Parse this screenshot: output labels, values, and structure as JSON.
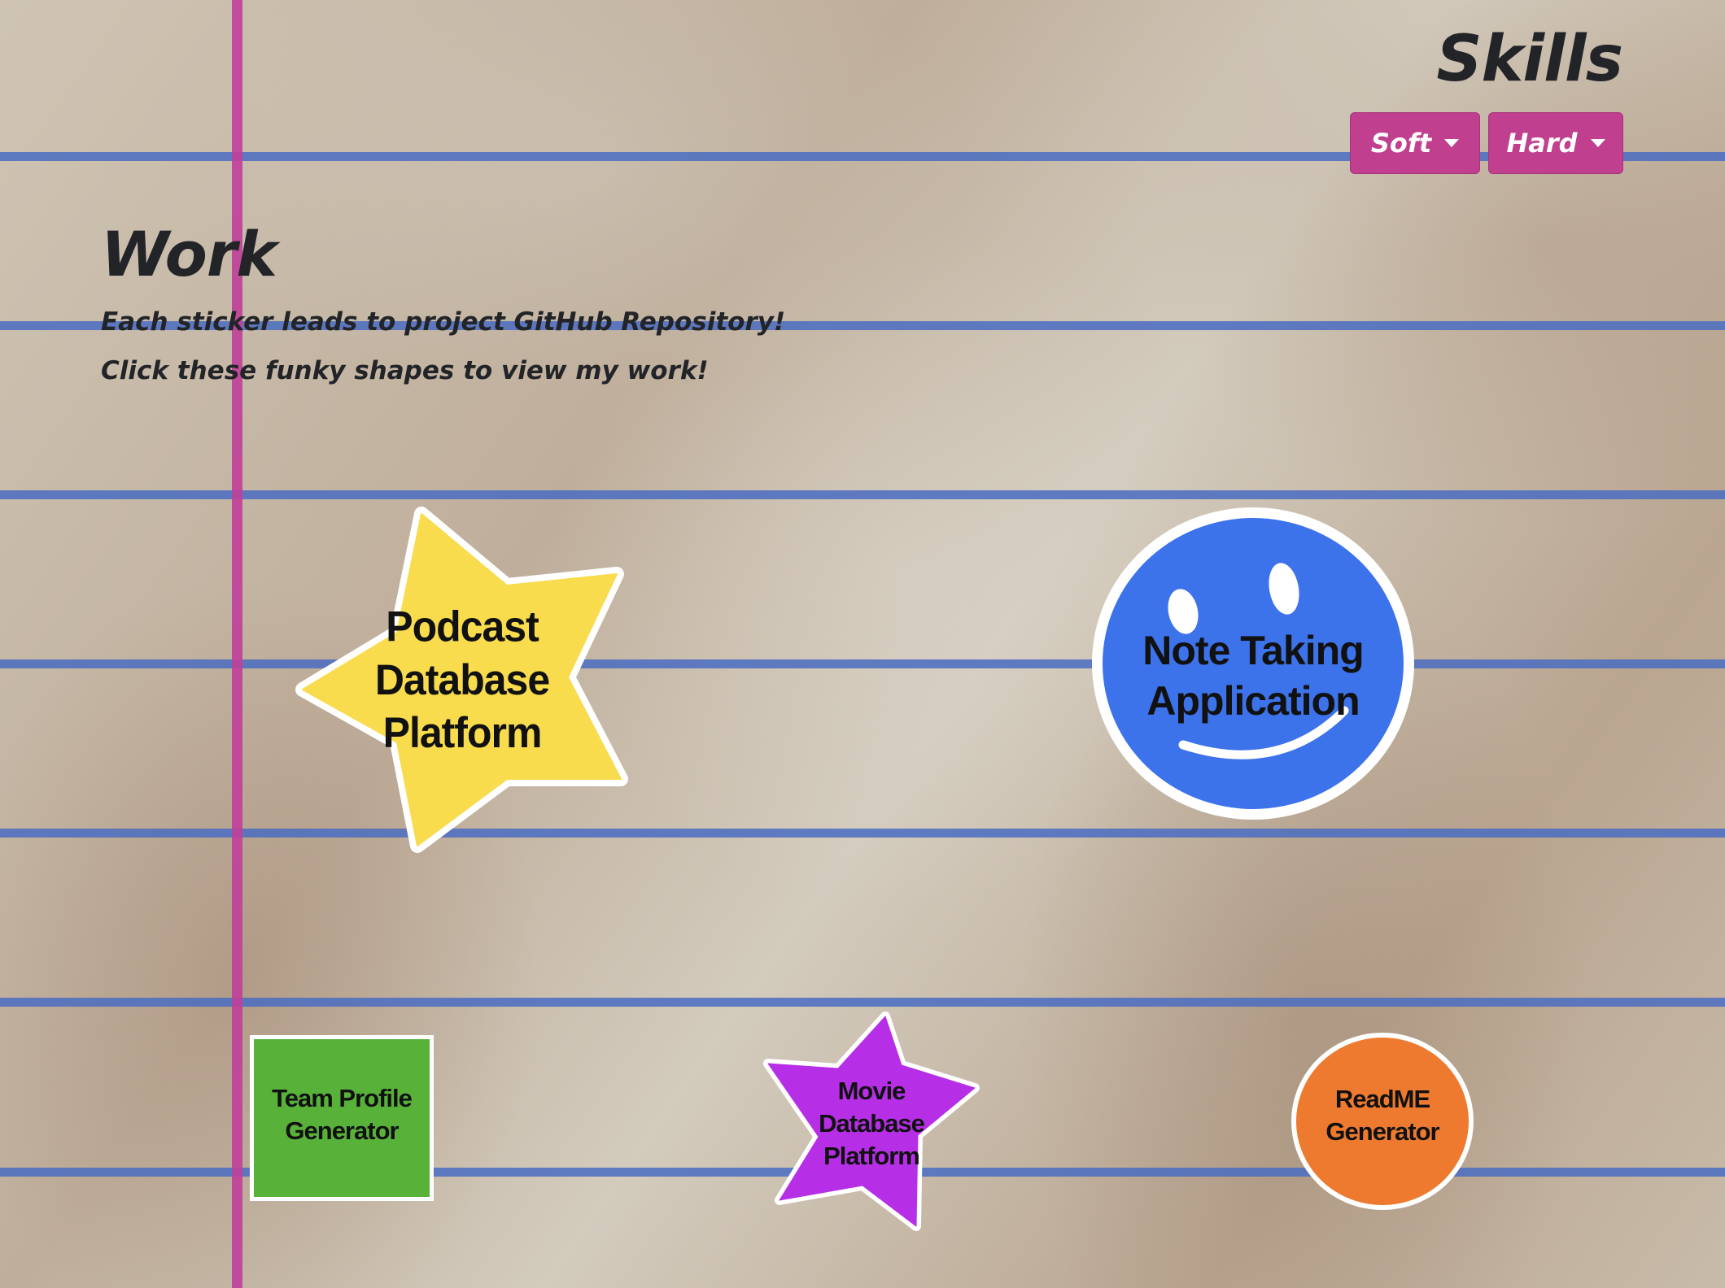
{
  "skills": {
    "title": "Skills",
    "dropdowns": [
      {
        "label": "Soft"
      },
      {
        "label": "Hard"
      }
    ]
  },
  "work": {
    "title": "Work",
    "lines": [
      "Each sticker leads to project GitHub Repository!",
      "Click these funky shapes to view my work!"
    ]
  },
  "stickers": [
    {
      "label": "Podcast\nDatabase\nPlatform",
      "shape": "star",
      "color": "#f8dc4e"
    },
    {
      "label": "Note Taking\nApplication",
      "shape": "smiley-face",
      "color": "#3d73ea"
    },
    {
      "label": "Team Profile\nGenerator",
      "shape": "square",
      "color": "#58b23a"
    },
    {
      "label": "Movie\nDatabase\nPlatform",
      "shape": "star",
      "color": "#b62fe6"
    },
    {
      "label": "ReadME\nGenerator",
      "shape": "circle",
      "color": "#ee7a2f"
    }
  ],
  "colors": {
    "ruled_line": "#4d6ec0",
    "margin_line": "#c0419a",
    "dropdown_button": "#c13f8f"
  }
}
